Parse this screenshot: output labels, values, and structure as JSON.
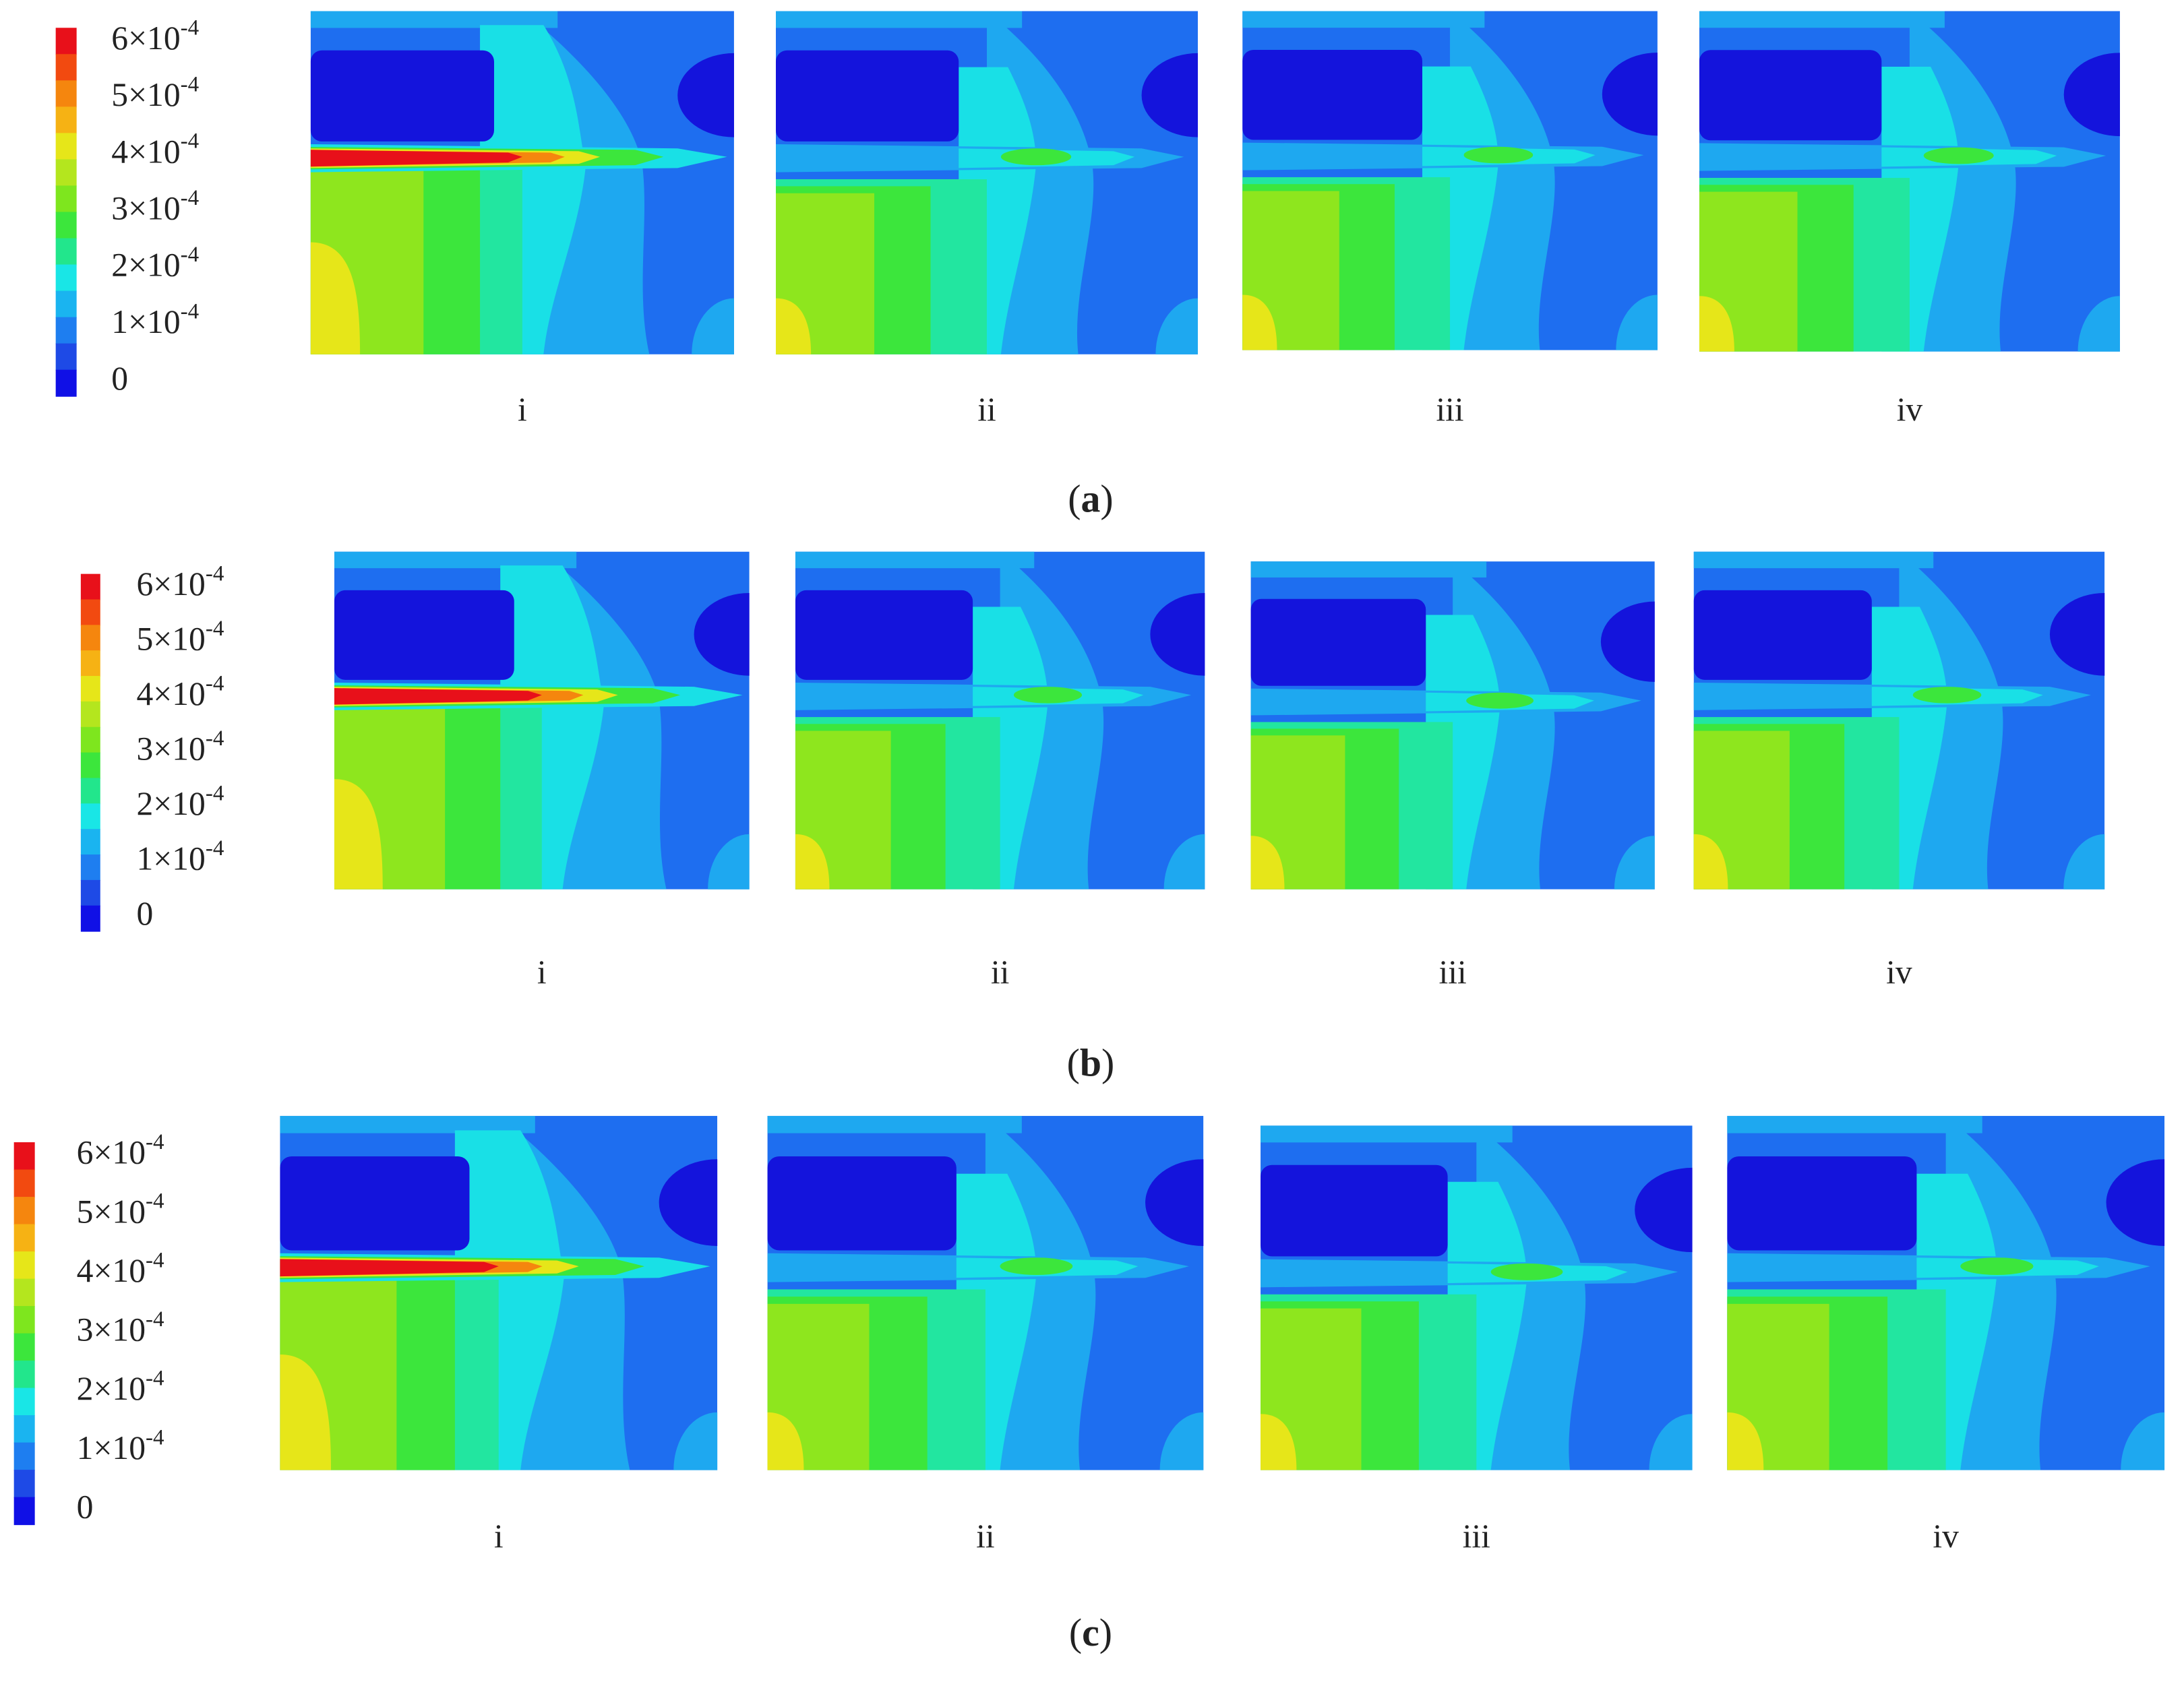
{
  "panels": [
    {
      "caption": [
        "(",
        "a",
        ")"
      ],
      "colorbar": [
        {
          "base": "6×10",
          "exp": "-4"
        },
        {
          "base": "5×10",
          "exp": "-4"
        },
        {
          "base": "4×10",
          "exp": "-4"
        },
        {
          "base": "3×10",
          "exp": "-4"
        },
        {
          "base": "2×10",
          "exp": "-4"
        },
        {
          "base": "1×10",
          "exp": "-4"
        },
        {
          "base": "0"
        }
      ],
      "subplots": [
        "i",
        "ii",
        "iii",
        "iv"
      ]
    },
    {
      "caption": [
        "(",
        "b",
        ")"
      ],
      "colorbar": [
        {
          "base": "6×10",
          "exp": "-4"
        },
        {
          "base": "5×10",
          "exp": "-4"
        },
        {
          "base": "4×10",
          "exp": "-4"
        },
        {
          "base": "3×10",
          "exp": "-4"
        },
        {
          "base": "2×10",
          "exp": "-4"
        },
        {
          "base": "1×10",
          "exp": "-4"
        },
        {
          "base": "0"
        }
      ],
      "subplots": [
        "i",
        "ii",
        "iii",
        "iv"
      ]
    },
    {
      "caption": [
        "(",
        "c",
        ")"
      ],
      "colorbar": [
        {
          "base": "6×10",
          "exp": "-4"
        },
        {
          "base": "5×10",
          "exp": "-4"
        },
        {
          "base": "4×10",
          "exp": "-4"
        },
        {
          "base": "3×10",
          "exp": "-4"
        },
        {
          "base": "2×10",
          "exp": "-4"
        },
        {
          "base": "1×10",
          "exp": "-4"
        },
        {
          "base": "0"
        }
      ],
      "subplots": [
        "i",
        "ii",
        "iii",
        "iv"
      ]
    }
  ]
}
